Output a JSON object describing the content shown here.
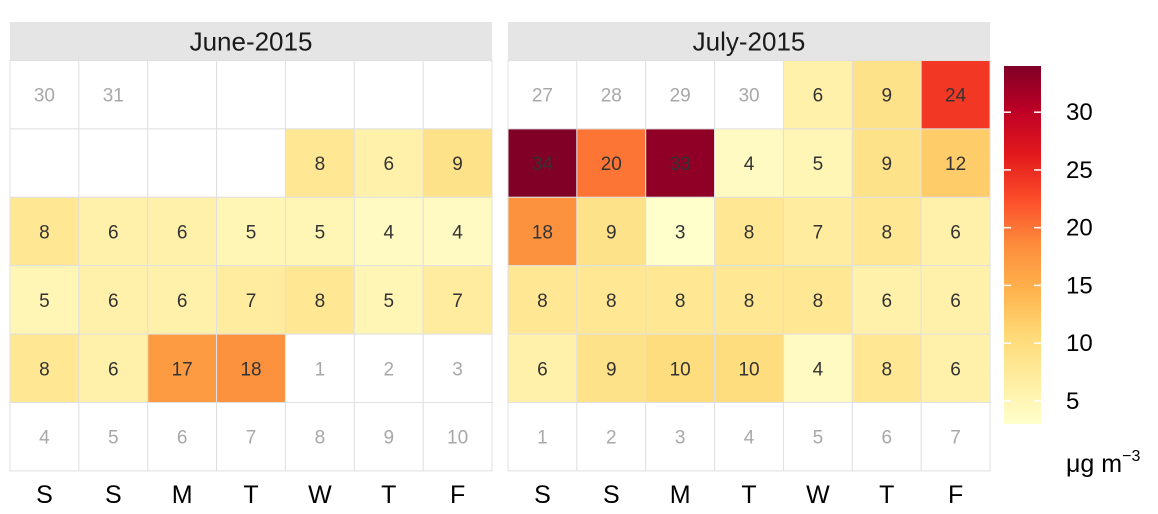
{
  "chart_data": {
    "type": "heatmap",
    "subtype": "calendar",
    "weekdays": [
      "S",
      "S",
      "M",
      "T",
      "W",
      "T",
      "F"
    ],
    "colors": {
      "scale": [
        "#FFFFCC",
        "#FFEDA0",
        "#FED976",
        "#FEB24C",
        "#FD8D3C",
        "#FC4E2A",
        "#E31A1C",
        "#BD0026",
        "#800026"
      ],
      "strip_fill": "#E5E5E5",
      "grid_line": "#E0E0E0",
      "other_month_text": "#A8A8A8",
      "value_text": "#333333"
    },
    "panels": [
      {
        "title": "June-2015",
        "weeks": [
          [
            {
              "day": "30",
              "other": true
            },
            {
              "day": "31",
              "other": true
            },
            null,
            null,
            null,
            null,
            null
          ],
          [
            null,
            null,
            null,
            null,
            {
              "value": 8
            },
            {
              "value": 6
            },
            {
              "value": 9
            }
          ],
          [
            {
              "value": 8
            },
            {
              "value": 6
            },
            {
              "value": 6
            },
            {
              "value": 5
            },
            {
              "value": 5
            },
            {
              "value": 4
            },
            {
              "value": 4
            }
          ],
          [
            {
              "value": 5
            },
            {
              "value": 6
            },
            {
              "value": 6
            },
            {
              "value": 7
            },
            {
              "value": 8
            },
            {
              "value": 5
            },
            {
              "value": 7
            }
          ],
          [
            {
              "value": 8
            },
            {
              "value": 6
            },
            {
              "value": 17
            },
            {
              "value": 18
            },
            {
              "day": "1",
              "other": true
            },
            {
              "day": "2",
              "other": true
            },
            {
              "day": "3",
              "other": true
            }
          ],
          [
            {
              "day": "4",
              "other": true
            },
            {
              "day": "5",
              "other": true
            },
            {
              "day": "6",
              "other": true
            },
            {
              "day": "7",
              "other": true
            },
            {
              "day": "8",
              "other": true
            },
            {
              "day": "9",
              "other": true
            },
            {
              "day": "10",
              "other": true
            }
          ]
        ]
      },
      {
        "title": "July-2015",
        "weeks": [
          [
            {
              "day": "27",
              "other": true
            },
            {
              "day": "28",
              "other": true
            },
            {
              "day": "29",
              "other": true
            },
            {
              "day": "30",
              "other": true
            },
            {
              "value": 6
            },
            {
              "value": 9
            },
            {
              "value": 24
            }
          ],
          [
            {
              "value": 34
            },
            {
              "value": 20
            },
            {
              "value": 33
            },
            {
              "value": 4
            },
            {
              "value": 5
            },
            {
              "value": 9
            },
            {
              "value": 12
            }
          ],
          [
            {
              "value": 18
            },
            {
              "value": 9
            },
            {
              "value": 3
            },
            {
              "value": 8
            },
            {
              "value": 7
            },
            {
              "value": 8
            },
            {
              "value": 6
            }
          ],
          [
            {
              "value": 8
            },
            {
              "value": 8
            },
            {
              "value": 8
            },
            {
              "value": 8
            },
            {
              "value": 8
            },
            {
              "value": 6
            },
            {
              "value": 6
            }
          ],
          [
            {
              "value": 6
            },
            {
              "value": 9
            },
            {
              "value": 10
            },
            {
              "value": 10
            },
            {
              "value": 4
            },
            {
              "value": 8
            },
            {
              "value": 6
            }
          ],
          [
            {
              "day": "1",
              "other": true
            },
            {
              "day": "2",
              "other": true
            },
            {
              "day": "3",
              "other": true
            },
            {
              "day": "4",
              "other": true
            },
            {
              "day": "5",
              "other": true
            },
            {
              "day": "6",
              "other": true
            },
            {
              "day": "7",
              "other": true
            }
          ]
        ]
      }
    ],
    "legend": {
      "title": "μg m",
      "title_superscript": "−3",
      "ticks": [
        5,
        10,
        15,
        20,
        25,
        30
      ],
      "range": [
        3,
        34
      ],
      "placement": "right"
    }
  }
}
